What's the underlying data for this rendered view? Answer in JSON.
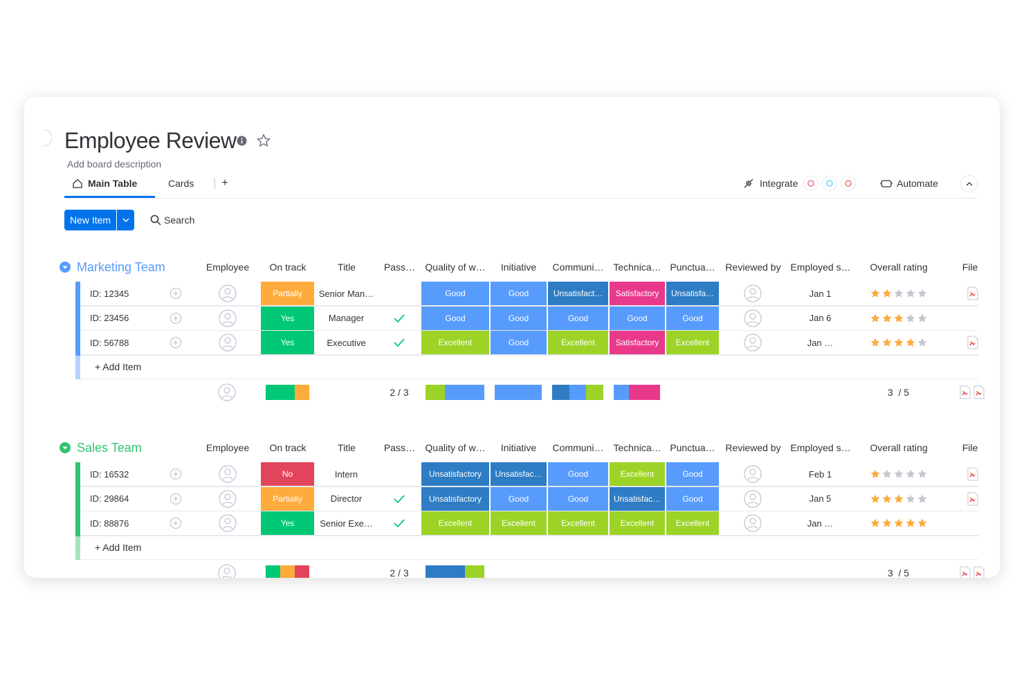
{
  "header": {
    "title": "Employee Review",
    "description": "Add board description"
  },
  "tabs": [
    "Main Table",
    "Cards",
    "+"
  ],
  "toolbar": {
    "integrate": "Integrate",
    "automate": "Automate",
    "new_item": "New Item",
    "search": "Search"
  },
  "columns": [
    "Employee",
    "On track",
    "Title",
    "Pass…",
    "Quality of w…",
    "Initiative",
    "Communi…",
    "Technica…",
    "Punctua…",
    "Reviewed by",
    "Employed s…",
    "Overall rating",
    "File"
  ],
  "colors": {
    "Yes": "#00c875",
    "Partially": "#fdab3d",
    "No": "#e2445c",
    "Good": "#579bfc",
    "Excellent": "#9cd326",
    "Satisfactory": "#e8398b",
    "Unsatisfactory": "#2e7cc4"
  },
  "stars_max": 5,
  "groups": [
    {
      "name": "Marketing Team",
      "color": "#579bfc",
      "add_item": "+ Add Item",
      "rows": [
        {
          "id": "ID: 12345",
          "on_track": "Partially",
          "title": "Senior Man…",
          "passed": false,
          "ratings": [
            "Good",
            "Good",
            "Unsatisfact…",
            "Satisfactory",
            "Unsatisfa…"
          ],
          "employed": "Jan 1",
          "stars": 2,
          "file": true
        },
        {
          "id": "ID: 23456",
          "on_track": "Yes",
          "title": "Manager",
          "passed": true,
          "ratings": [
            "Good",
            "Good",
            "Good",
            "Good",
            "Good"
          ],
          "employed": "Jan 6",
          "stars": 3,
          "file": false
        },
        {
          "id": "ID: 56788",
          "on_track": "Yes",
          "title": "Executive",
          "passed": true,
          "ratings": [
            "Excellent",
            "Good",
            "Excellent",
            "Satisfactory",
            "Excellent"
          ],
          "employed": "Jan …",
          "stars": 4,
          "file": true
        }
      ],
      "summary": {
        "passed": "2 / 3",
        "rating": "3  / 5",
        "bars": [
          [
            {
              "color": "#00c875",
              "count": 2
            },
            {
              "color": "#fdab3d",
              "count": 1
            }
          ],
          [
            {
              "color": "#9cd326",
              "count": 1
            },
            {
              "color": "#579bfc",
              "count": 2
            }
          ],
          [
            {
              "color": "#579bfc",
              "count": 3
            }
          ],
          [
            {
              "color": "#2e7cc4",
              "count": 1
            },
            {
              "color": "#579bfc",
              "count": 1
            },
            {
              "color": "#9cd326",
              "count": 1
            }
          ],
          [
            {
              "color": "#579bfc",
              "count": 1
            },
            {
              "color": "#e8398b",
              "count": 2
            }
          ]
        ]
      }
    },
    {
      "name": "Sales Team",
      "color": "#33c36f",
      "add_item": "+ Add Item",
      "rows": [
        {
          "id": "ID: 16532",
          "on_track": "No",
          "title": "Intern",
          "passed": false,
          "ratings": [
            "Unsatisfactory",
            "Unsatisfac…",
            "Good",
            "Excellent",
            "Good"
          ],
          "employed": "Feb 1",
          "stars": 1,
          "file": true
        },
        {
          "id": "ID: 29864",
          "on_track": "Partially",
          "title": "Director",
          "passed": true,
          "ratings": [
            "Unsatisfactory",
            "Good",
            "Good",
            "Unsatisfac…",
            "Good"
          ],
          "employed": "Jan 5",
          "stars": 3,
          "file": true
        },
        {
          "id": "ID: 88876",
          "on_track": "Yes",
          "title": "Senior Exe…",
          "passed": true,
          "ratings": [
            "Excellent",
            "Excellent",
            "Excellent",
            "Excellent",
            "Excellent"
          ],
          "employed": "Jan …",
          "stars": 5,
          "file": false
        }
      ],
      "summary": {
        "passed": "2 / 3",
        "rating": "3  / 5",
        "bars": [
          [
            {
              "color": "#00c875",
              "count": 1
            },
            {
              "color": "#fdab3d",
              "count": 1
            },
            {
              "color": "#e2445c",
              "count": 1
            }
          ],
          [
            {
              "color": "#2e7cc4",
              "count": 2
            },
            {
              "color": "#9cd326",
              "count": 1
            }
          ]
        ]
      }
    }
  ]
}
